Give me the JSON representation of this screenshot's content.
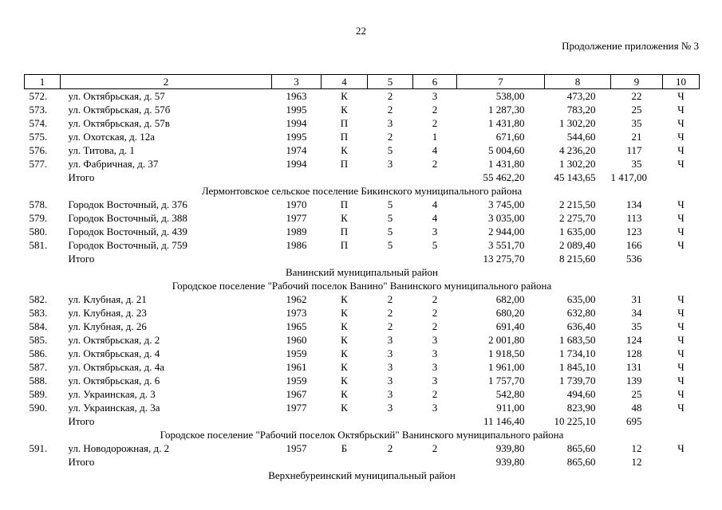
{
  "page": {
    "number": "22",
    "continuation_note": "Продолжение приложения № 3"
  },
  "table": {
    "header_numbers": [
      "1",
      "2",
      "3",
      "4",
      "5",
      "6",
      "7",
      "8",
      "9",
      "10"
    ],
    "rows": [
      {
        "type": "data",
        "cells": [
          "572.",
          "ул. Октябрьская, д. 57",
          "1963",
          "К",
          "2",
          "3",
          "538,00",
          "473,20",
          "22",
          "Ч"
        ]
      },
      {
        "type": "data",
        "cells": [
          "573.",
          "ул. Октябрьская, д. 57б",
          "1995",
          "К",
          "2",
          "2",
          "1 287,30",
          "783,20",
          "25",
          "Ч"
        ]
      },
      {
        "type": "data",
        "cells": [
          "574.",
          "ул. Октябрьская, д. 57в",
          "1994",
          "П",
          "3",
          "2",
          "1 431,80",
          "1 302,20",
          "35",
          "Ч"
        ]
      },
      {
        "type": "data",
        "cells": [
          "575.",
          "ул. Охотская, д. 12а",
          "1995",
          "П",
          "2",
          "1",
          "671,60",
          "544,60",
          "21",
          "Ч"
        ]
      },
      {
        "type": "data",
        "cells": [
          "576.",
          "ул. Титова, д. 1",
          "1974",
          "К",
          "5",
          "4",
          "5 004,60",
          "4 236,20",
          "117",
          "Ч"
        ]
      },
      {
        "type": "data",
        "cells": [
          "577.",
          "ул. Фабричная, д. 37",
          "1994",
          "П",
          "3",
          "2",
          "1 431,80",
          "1 302,20",
          "35",
          "Ч"
        ]
      },
      {
        "type": "total",
        "cells": [
          "",
          "Итого",
          "",
          "",
          "",
          "",
          "55 462,20",
          "45 143,65",
          "1 417,00",
          ""
        ]
      },
      {
        "type": "section",
        "text": "Лермонтовское сельское поселение Бикинского муниципального района"
      },
      {
        "type": "data",
        "cells": [
          "578.",
          "Городок Восточный, д. 376",
          "1970",
          "П",
          "5",
          "4",
          "3 745,00",
          "2 215,50",
          "134",
          "Ч"
        ]
      },
      {
        "type": "data",
        "cells": [
          "579.",
          "Городок Восточный, д. 388",
          "1977",
          "К",
          "5",
          "4",
          "3 035,00",
          "2 275,70",
          "113",
          "Ч"
        ]
      },
      {
        "type": "data",
        "cells": [
          "580.",
          "Городок Восточный, д. 439",
          "1989",
          "П",
          "5",
          "3",
          "2 944,00",
          "1 635,00",
          "123",
          "Ч"
        ]
      },
      {
        "type": "data",
        "cells": [
          "581.",
          "Городок Восточный, д. 759",
          "1986",
          "П",
          "5",
          "5",
          "3 551,70",
          "2 089,40",
          "166",
          "Ч"
        ]
      },
      {
        "type": "total",
        "cells": [
          "",
          "Итого",
          "",
          "",
          "",
          "",
          "13 275,70",
          "8 215,60",
          "536",
          ""
        ]
      },
      {
        "type": "section",
        "text": "Ванинский муниципальный район"
      },
      {
        "type": "section",
        "text": "Городское поселение \"Рабочий поселок Ванино\" Ванинского муниципального района"
      },
      {
        "type": "data",
        "cells": [
          "582.",
          "ул. Клубная, д. 21",
          "1962",
          "К",
          "2",
          "2",
          "682,00",
          "635,00",
          "31",
          "Ч"
        ]
      },
      {
        "type": "data",
        "cells": [
          "583.",
          "ул. Клубная, д. 23",
          "1973",
          "К",
          "2",
          "2",
          "680,20",
          "632,80",
          "34",
          "Ч"
        ]
      },
      {
        "type": "data",
        "cells": [
          "584.",
          "ул. Клубная, д. 26",
          "1965",
          "К",
          "2",
          "2",
          "691,40",
          "636,40",
          "35",
          "Ч"
        ]
      },
      {
        "type": "data",
        "cells": [
          "585.",
          "ул. Октябрьская, д. 2",
          "1960",
          "К",
          "3",
          "3",
          "2 001,80",
          "1 683,50",
          "124",
          "Ч"
        ]
      },
      {
        "type": "data",
        "cells": [
          "586.",
          "ул. Октябрьская, д. 4",
          "1959",
          "К",
          "3",
          "3",
          "1 918,50",
          "1 734,10",
          "128",
          "Ч"
        ]
      },
      {
        "type": "data",
        "cells": [
          "587.",
          "ул. Октябрьская, д. 4а",
          "1961",
          "К",
          "3",
          "3",
          "1 961,00",
          "1 845,10",
          "131",
          "Ч"
        ]
      },
      {
        "type": "data",
        "cells": [
          "588.",
          "ул. Октябрьская, д. 6",
          "1959",
          "К",
          "3",
          "3",
          "1 757,70",
          "1 739,70",
          "139",
          "Ч"
        ]
      },
      {
        "type": "data",
        "cells": [
          "589.",
          "ул. Украинская, д. 3",
          "1967",
          "К",
          "3",
          "2",
          "542,80",
          "494,60",
          "25",
          "Ч"
        ]
      },
      {
        "type": "data",
        "cells": [
          "590.",
          "ул. Украинская, д. 3а",
          "1977",
          "К",
          "3",
          "3",
          "911,00",
          "823,90",
          "48",
          "Ч"
        ]
      },
      {
        "type": "total",
        "cells": [
          "",
          "Итого",
          "",
          "",
          "",
          "",
          "11 146,40",
          "10 225,10",
          "695",
          ""
        ]
      },
      {
        "type": "section",
        "text": "Городское поселение \"Рабочий поселок Октябрьский\" Ванинского муниципального района"
      },
      {
        "type": "data",
        "cells": [
          "591.",
          "ул. Новодорожная, д. 2",
          "1957",
          "Б",
          "2",
          "2",
          "939,80",
          "865,60",
          "12",
          "Ч"
        ]
      },
      {
        "type": "total",
        "cells": [
          "",
          "Итого",
          "",
          "",
          "",
          "",
          "939,80",
          "865,60",
          "12",
          ""
        ]
      },
      {
        "type": "section",
        "text": "Верхнебуреинский муниципальный район"
      }
    ]
  }
}
